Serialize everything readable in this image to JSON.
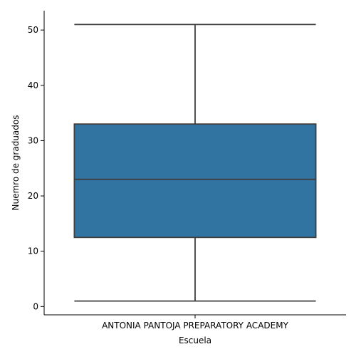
{
  "chart_data": {
    "type": "box",
    "title": "",
    "xlabel": "Escuela",
    "ylabel": "Nuemro de graduados",
    "categories": [
      "ANTONIA PANTOJA PREPARATORY ACADEMY"
    ],
    "boxes": [
      {
        "category": "ANTONIA PANTOJA PREPARATORY ACADEMY",
        "whisker_low": 1,
        "q1": 12.5,
        "median": 23,
        "q3": 33,
        "whisker_high": 51
      }
    ],
    "yticks": [
      0,
      10,
      20,
      30,
      40,
      50
    ],
    "ylim": [
      -1.5,
      53.5
    ],
    "grid": false,
    "legend": "none",
    "colors": {
      "box_fill": "#3274a1",
      "line": "#3f3f3f",
      "axis": "#000000"
    }
  }
}
